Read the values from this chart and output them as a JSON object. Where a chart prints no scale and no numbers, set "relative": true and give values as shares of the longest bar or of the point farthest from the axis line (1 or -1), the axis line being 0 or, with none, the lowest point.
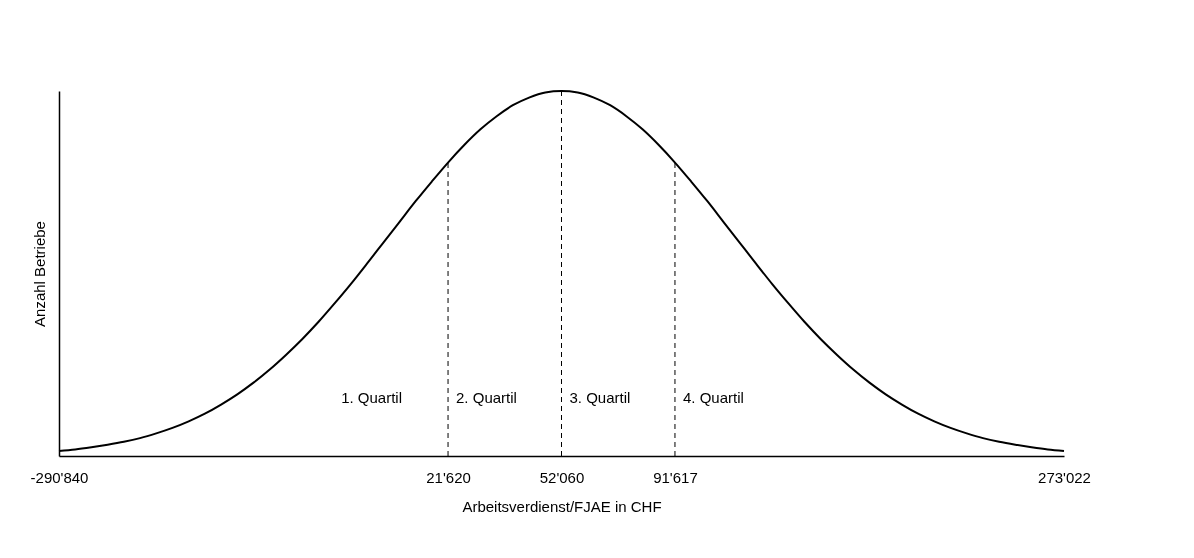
{
  "chart_data": {
    "type": "line",
    "relative": true,
    "xlabel": "Arbeitsverdienst/FJAE in CHF",
    "ylabel": "Anzahl Betriebe",
    "tick_labels": "x",
    "categories": [
      "-290'840",
      null,
      null,
      null,
      null,
      null,
      null,
      null,
      null,
      null,
      null,
      null,
      null,
      null,
      null,
      null,
      null,
      null,
      null,
      null,
      null,
      null,
      null,
      null,
      "21'620",
      null,
      null,
      null,
      null,
      null,
      null,
      "52'060",
      null,
      null,
      null,
      null,
      null,
      null,
      "91'617",
      null,
      null,
      null,
      null,
      null,
      null,
      null,
      null,
      null,
      null,
      null,
      null,
      null,
      null,
      null,
      null,
      null,
      null,
      null,
      null,
      null,
      null,
      null,
      "273'022"
    ],
    "series": [
      {
        "color": "#000000",
        "values": [
          0.014,
          0.018,
          0.024,
          0.031,
          0.039,
          0.049,
          0.062,
          0.077,
          0.095,
          0.116,
          0.141,
          0.169,
          0.201,
          0.237,
          0.277,
          0.32,
          0.367,
          0.418,
          0.471,
          0.527,
          0.584,
          0.641,
          0.698,
          0.752,
          0.804,
          0.852,
          0.895,
          0.931,
          0.961,
          0.982,
          0.996,
          1,
          0.996,
          0.982,
          0.961,
          0.931,
          0.895,
          0.852,
          0.804,
          0.752,
          0.698,
          0.641,
          0.584,
          0.527,
          0.471,
          0.418,
          0.367,
          0.32,
          0.277,
          0.237,
          0.201,
          0.169,
          0.141,
          0.116,
          0.095,
          0.077,
          0.062,
          0.049,
          0.039,
          0.031,
          0.024,
          0.018,
          0.014
        ]
      }
    ],
    "ref_lines": [
      {
        "axis": "x",
        "value": "21'620",
        "line_style": "dashed",
        "color": "#000000"
      },
      {
        "axis": "x",
        "value": "52'060",
        "line_style": "dashed",
        "color": "#000000"
      },
      {
        "axis": "x",
        "value": "91'617",
        "line_style": "dashed",
        "color": "#000000"
      }
    ],
    "annotations": [
      "1. Quartil",
      "2. Quartil",
      "3. Quartil",
      "4. Quartil"
    ]
  }
}
